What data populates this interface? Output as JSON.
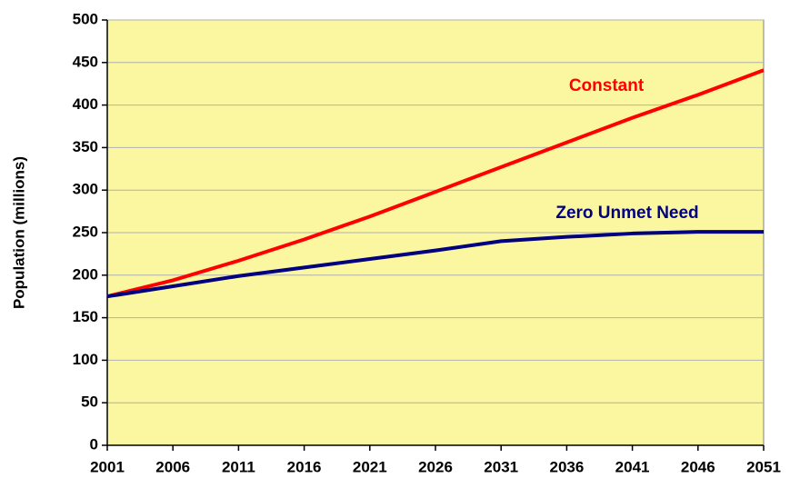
{
  "chart_data": {
    "type": "line",
    "y_label": "Population (millions)",
    "x": [
      2001,
      2006,
      2011,
      2016,
      2021,
      2026,
      2031,
      2036,
      2041,
      2046,
      2051
    ],
    "series": [
      {
        "name": "Constant",
        "color": "#ff0000",
        "values": [
          175,
          194,
          217,
          242,
          269,
          298,
          327,
          356,
          385,
          412,
          441
        ]
      },
      {
        "name": "Zero Unmet Need",
        "color": "#000080",
        "values": [
          175,
          187,
          199,
          209,
          219,
          229,
          240,
          245,
          249,
          251,
          251
        ]
      }
    ],
    "xlim": [
      2001,
      2051
    ],
    "xticks": [
      2001,
      2006,
      2011,
      2016,
      2021,
      2026,
      2031,
      2036,
      2041,
      2046,
      2051
    ],
    "ylim": [
      0,
      500
    ],
    "yticks": [
      0,
      50,
      100,
      150,
      200,
      250,
      300,
      350,
      400,
      450,
      500
    ],
    "grid": true,
    "plot_background": "#fbf7a0"
  }
}
